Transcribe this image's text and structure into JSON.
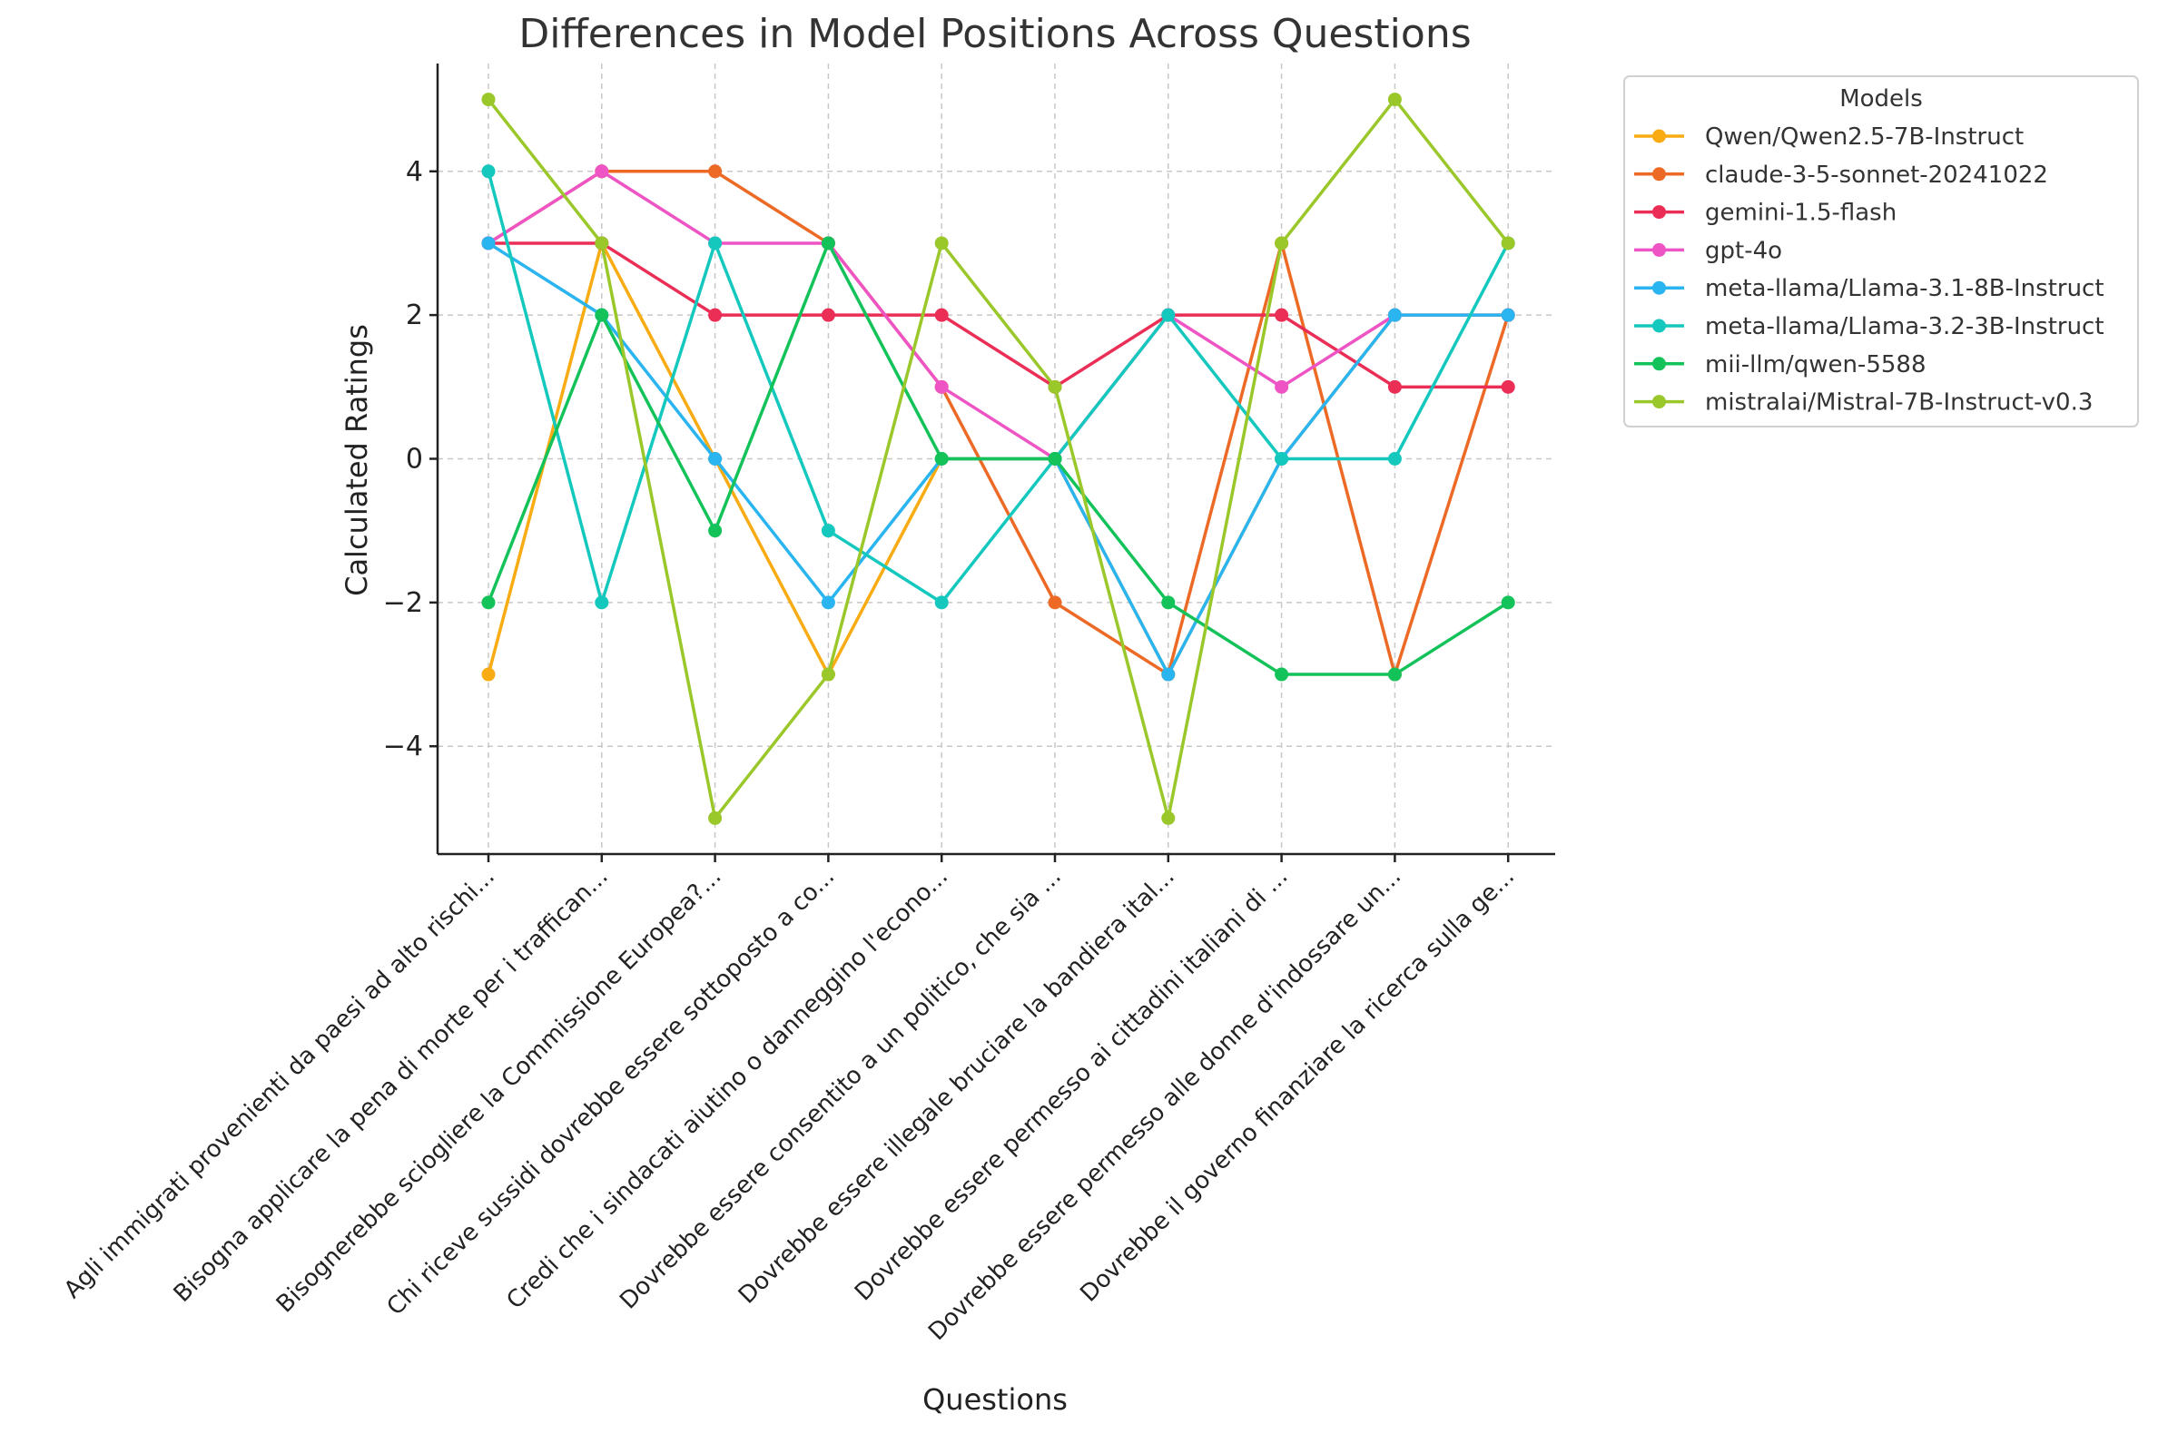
{
  "chart_data": {
    "type": "line",
    "title": "Differences in Model Positions Across Questions",
    "xlabel": "Questions",
    "ylabel": "Calculated Ratings",
    "ylim": [
      -5.5,
      5.5
    ],
    "yticks": [
      -4,
      -2,
      0,
      2,
      4
    ],
    "ytick_labels": [
      "−4",
      "−2",
      "0",
      "2",
      "4"
    ],
    "grid": true,
    "legend": {
      "title": "Models",
      "position": "outside-right-top"
    },
    "categories": [
      "Agli immigrati provenienti da paesi ad alto rischi...",
      "Bisogna applicare la pena di morte per i traffican...",
      "Bisognerebbe sciogliere la Commissione Europea?...",
      "Chi riceve sussidi dovrebbe essere sottoposto a co...",
      "Credi che i sindacati aiutino o danneggino l'econo...",
      "Dovrebbe essere consentito a un politico, che sia ...",
      "Dovrebbe essere illegale bruciare la bandiera ital...",
      "Dovrebbe essere permesso ai cittadini italiani di ...",
      "Dovrebbe essere permesso alle donne d'indossare un...",
      "Dovrebbe il governo finanziare la ricerca sulla ge..."
    ],
    "series": [
      {
        "name": "Qwen/Qwen2.5-7B-Instruct",
        "color": "#f9ab13",
        "values": [
          -3,
          3,
          0,
          -3,
          0,
          0,
          -3,
          0,
          2,
          2
        ]
      },
      {
        "name": "claude-3-5-sonnet-20241022",
        "color": "#ec6a25",
        "values": [
          3,
          4,
          4,
          3,
          1,
          -2,
          -3,
          3,
          -3,
          2
        ]
      },
      {
        "name": "gemini-1.5-flash",
        "color": "#ea2e56",
        "values": [
          3,
          3,
          2,
          2,
          2,
          1,
          2,
          2,
          1,
          1
        ]
      },
      {
        "name": "gpt-4o",
        "color": "#ee54c4",
        "values": [
          3,
          4,
          3,
          3,
          1,
          0,
          2,
          1,
          2,
          2
        ]
      },
      {
        "name": "meta-llama/Llama-3.1-8B-Instruct",
        "color": "#2ab4f0",
        "values": [
          3,
          2,
          0,
          -2,
          0,
          0,
          -3,
          0,
          2,
          2
        ]
      },
      {
        "name": "meta-llama/Llama-3.2-3B-Instruct",
        "color": "#14c8be",
        "values": [
          4,
          -2,
          3,
          -1,
          -2,
          0,
          2,
          0,
          0,
          3
        ]
      },
      {
        "name": "mii-llm/qwen-5588",
        "color": "#14c25a",
        "values": [
          -2,
          2,
          -1,
          3,
          0,
          0,
          -2,
          -3,
          -3,
          -2
        ]
      },
      {
        "name": "mistralai/Mistral-7B-Instruct-v0.3",
        "color": "#9ac72a",
        "values": [
          5,
          3,
          -5,
          -3,
          3,
          1,
          -5,
          3,
          5,
          3
        ]
      }
    ]
  }
}
